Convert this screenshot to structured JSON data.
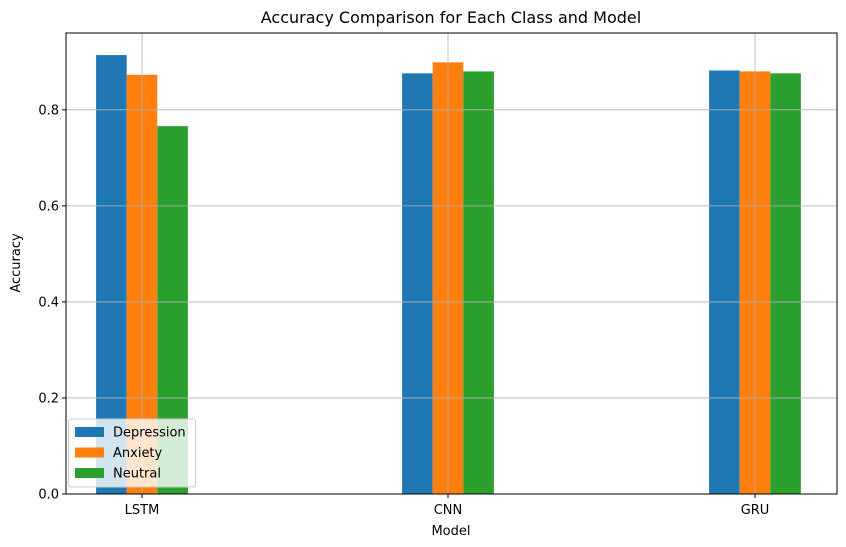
{
  "chart_data": {
    "type": "bar",
    "title": "Accuracy Comparison for Each Class and Model",
    "xlabel": "Model",
    "ylabel": "Accuracy",
    "categories": [
      "LSTM",
      "CNN",
      "GRU"
    ],
    "series": [
      {
        "name": "Depression",
        "color": "#1f77b4",
        "values": [
          0.914,
          0.876,
          0.882
        ]
      },
      {
        "name": "Anxiety",
        "color": "#ff7f0e",
        "values": [
          0.873,
          0.899,
          0.88
        ]
      },
      {
        "name": "Neutral",
        "color": "#2ca02c",
        "values": [
          0.766,
          0.88,
          0.876
        ]
      }
    ],
    "ylim": [
      0,
      0.96
    ],
    "yticks": [
      "0.0",
      "0.2",
      "0.4",
      "0.6",
      "0.8"
    ],
    "grid": true,
    "legend_position": "lower-left"
  }
}
